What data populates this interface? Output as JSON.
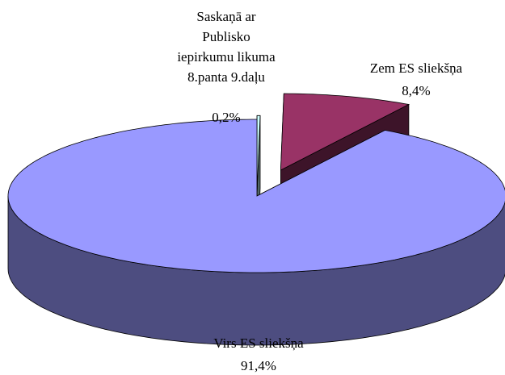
{
  "chart_data": {
    "type": "pie",
    "categories": [
      "Saskaņā ar\nPublisko\niepirkumu likuma\n8.panta 9.daļu",
      "Zem ES sliekšņa",
      "Virs ES sliekšņa"
    ],
    "values": [
      0.2,
      8.4,
      91.4
    ],
    "value_labels": [
      "0,2%",
      "8,4%",
      "91,4%"
    ],
    "colors": [
      "#ccffff",
      "#993366",
      "#9999ff"
    ]
  }
}
